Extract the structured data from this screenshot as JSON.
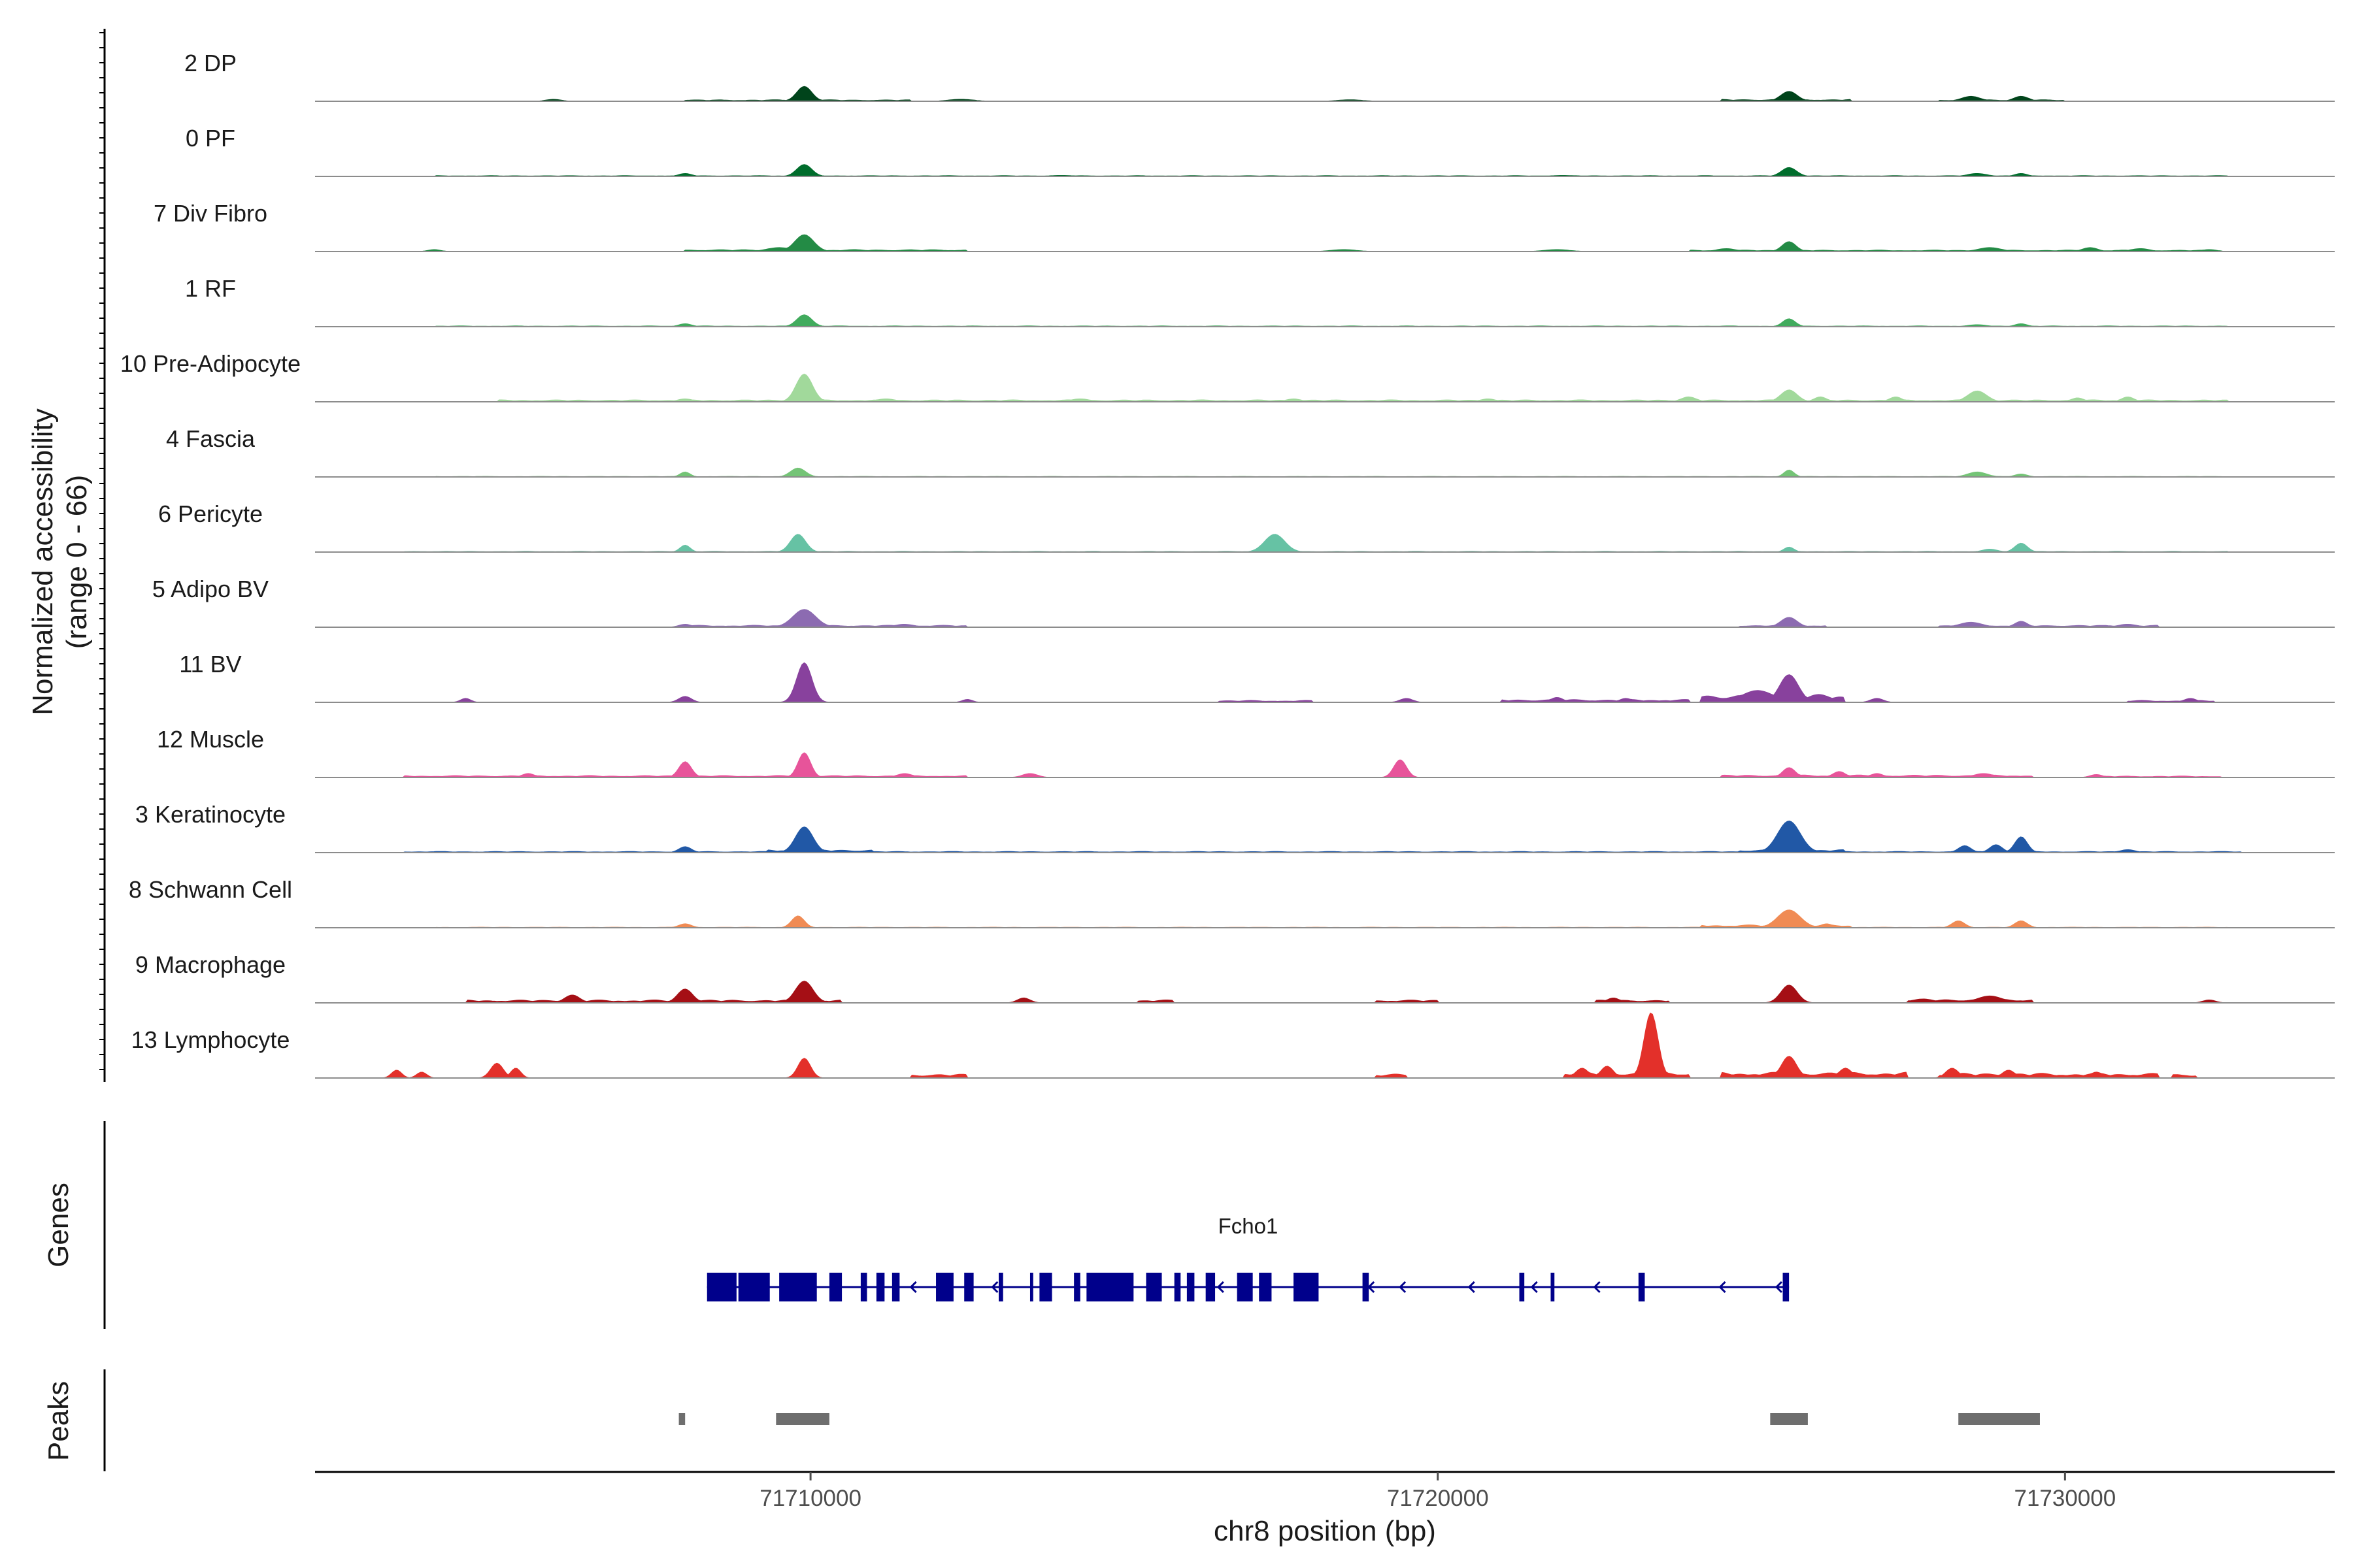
{
  "chart_data": {
    "type": "area",
    "chromosome": "chr8",
    "xlabel": "chr8 position (bp)",
    "ylabel": [
      "Normalized accessibility",
      "(range 0 - 66)"
    ],
    "ylim": [
      0,
      66
    ],
    "xlim": [
      71702100,
      71734300
    ],
    "x_ticks": [
      71710000,
      71720000,
      71730000
    ],
    "x_tick_labels": [
      "71710000",
      "71720000",
      "71730000"
    ],
    "grid": false,
    "panel_labels": {
      "genes": "Genes",
      "peaks": "Peaks"
    },
    "series": [
      {
        "name": "2 DP",
        "color": "#00441b",
        "peaks": [
          [
            71709900,
            15,
            120
          ],
          [
            71725600,
            10,
            130
          ],
          [
            71728500,
            5,
            150
          ],
          [
            71729300,
            5,
            120
          ],
          [
            71705900,
            2,
            120
          ],
          [
            71712400,
            2,
            200
          ],
          [
            71718600,
            1.5,
            200
          ]
        ],
        "spans": [
          [
            71708000,
            71711600,
            1.5
          ],
          [
            71724500,
            71726600,
            2
          ],
          [
            71728000,
            71730000,
            1.5
          ]
        ]
      },
      {
        "name": "0 PF",
        "color": "#006d2c",
        "peaks": [
          [
            71709900,
            12,
            120
          ],
          [
            71725600,
            9,
            120
          ],
          [
            71708000,
            3,
            100
          ],
          [
            71728600,
            3,
            150
          ],
          [
            71729300,
            3,
            100
          ],
          [
            71714000,
            1,
            200
          ],
          [
            71722000,
            1,
            200
          ]
        ],
        "spans": [
          [
            71704000,
            71732600,
            0.8
          ]
        ]
      },
      {
        "name": "7 Div Fibro",
        "color": "#238b45",
        "peaks": [
          [
            71709900,
            17,
            150
          ],
          [
            71725600,
            10,
            110
          ],
          [
            71704000,
            2,
            100
          ],
          [
            71709500,
            4,
            200
          ],
          [
            71724600,
            3,
            150
          ],
          [
            71728800,
            4,
            180
          ],
          [
            71730400,
            4,
            120
          ],
          [
            71731200,
            3,
            150
          ],
          [
            71732300,
            2,
            120
          ],
          [
            71718500,
            2,
            200
          ],
          [
            71721900,
            2,
            200
          ]
        ],
        "spans": [
          [
            71708000,
            71712500,
            2
          ],
          [
            71724000,
            71732500,
            1.5
          ]
        ]
      },
      {
        "name": "1 RF",
        "color": "#41ab5d",
        "peaks": [
          [
            71709900,
            12,
            120
          ],
          [
            71725600,
            8,
            100
          ],
          [
            71708000,
            3,
            100
          ],
          [
            71728600,
            2,
            150
          ],
          [
            71729300,
            3,
            100
          ]
        ],
        "spans": [
          [
            71704000,
            71732600,
            0.8
          ]
        ]
      },
      {
        "name": "10 Pre-Adipocyte",
        "color": "#a1d99b",
        "peaks": [
          [
            71709900,
            28,
            130
          ],
          [
            71708000,
            3,
            120
          ],
          [
            71711200,
            3,
            150
          ],
          [
            71714300,
            3,
            150
          ],
          [
            71725600,
            12,
            130
          ],
          [
            71728600,
            11,
            150
          ],
          [
            71726100,
            5,
            100
          ],
          [
            71727300,
            5,
            100
          ],
          [
            71730200,
            4,
            100
          ],
          [
            71731000,
            5,
            100
          ],
          [
            71724000,
            5,
            120
          ],
          [
            71720800,
            3,
            120
          ],
          [
            71717700,
            3,
            120
          ]
        ],
        "spans": [
          [
            71705000,
            71732600,
            2
          ]
        ]
      },
      {
        "name": "4 Fascia",
        "color": "#74c476",
        "peaks": [
          [
            71709800,
            9,
            120
          ],
          [
            71708000,
            5,
            80
          ],
          [
            71725600,
            7,
            80
          ],
          [
            71728600,
            5,
            150
          ],
          [
            71729300,
            3,
            100
          ]
        ],
        "spans": [
          [
            71704000,
            71732600,
            0.6
          ]
        ]
      },
      {
        "name": "6 Pericyte",
        "color": "#66c2a4",
        "peaks": [
          [
            71709800,
            18,
            120
          ],
          [
            71717400,
            18,
            160
          ],
          [
            71708000,
            7,
            80
          ],
          [
            71729300,
            9,
            100
          ],
          [
            71725600,
            5,
            80
          ],
          [
            71728800,
            3,
            120
          ]
        ],
        "spans": [
          [
            71703500,
            71732600,
            0.8
          ]
        ]
      },
      {
        "name": "5 Adipo BV",
        "color": "#8c6bb1",
        "peaks": [
          [
            71709900,
            18,
            180
          ],
          [
            71725600,
            10,
            130
          ],
          [
            71728500,
            5,
            180
          ],
          [
            71729300,
            6,
            100
          ],
          [
            71708000,
            3,
            100
          ],
          [
            71711500,
            3,
            150
          ],
          [
            71731000,
            3,
            150
          ]
        ],
        "spans": [
          [
            71708000,
            71712500,
            2
          ],
          [
            71724800,
            71726200,
            2
          ],
          [
            71728000,
            71731500,
            2
          ]
        ]
      },
      {
        "name": "11 BV",
        "color": "#88419d",
        "peaks": [
          [
            71709900,
            40,
            120
          ],
          [
            71725600,
            28,
            150
          ],
          [
            71725100,
            12,
            250
          ],
          [
            71708000,
            6,
            100
          ],
          [
            71712500,
            3,
            80
          ],
          [
            71719500,
            4,
            100
          ],
          [
            71721900,
            5,
            100
          ],
          [
            71723000,
            4,
            100
          ],
          [
            71727000,
            4,
            100
          ],
          [
            71732000,
            4,
            100
          ],
          [
            71704500,
            4,
            80
          ]
        ],
        "spans": [
          [
            71724200,
            71726500,
            8
          ],
          [
            71721000,
            71724000,
            3
          ],
          [
            71716500,
            71718000,
            2
          ],
          [
            71731000,
            71732400,
            2
          ]
        ]
      },
      {
        "name": "12 Muscle",
        "color": "#e7549a",
        "peaks": [
          [
            71709900,
            25,
            100
          ],
          [
            71708000,
            16,
            100
          ],
          [
            71719400,
            18,
            100
          ],
          [
            71725600,
            10,
            100
          ],
          [
            71705500,
            4,
            100
          ],
          [
            71711500,
            4,
            120
          ],
          [
            71713500,
            4,
            120
          ],
          [
            71726400,
            6,
            100
          ],
          [
            71727000,
            4,
            100
          ],
          [
            71728700,
            4,
            150
          ],
          [
            71730500,
            3,
            100
          ]
        ],
        "spans": [
          [
            71703500,
            71712500,
            2
          ],
          [
            71724500,
            71729500,
            2.5
          ],
          [
            71730500,
            71732500,
            1.5
          ]
        ]
      },
      {
        "name": "3 Keratinocyte",
        "color": "#2158a6",
        "peaks": [
          [
            71709900,
            26,
            140
          ],
          [
            71725600,
            32,
            180
          ],
          [
            71728400,
            7,
            100
          ],
          [
            71728900,
            8,
            100
          ],
          [
            71729300,
            16,
            100
          ],
          [
            71708000,
            6,
            100
          ],
          [
            71731000,
            3,
            120
          ]
        ],
        "spans": [
          [
            71703500,
            71732800,
            1.2
          ],
          [
            71709300,
            71711000,
            3
          ],
          [
            71724800,
            71726500,
            3
          ]
        ]
      },
      {
        "name": "8 Schwann Cell",
        "color": "#f08b54",
        "peaks": [
          [
            71709800,
            12,
            100
          ],
          [
            71725600,
            18,
            180
          ],
          [
            71708000,
            4,
            100
          ],
          [
            71728300,
            7,
            100
          ],
          [
            71729300,
            7,
            100
          ],
          [
            71726200,
            4,
            100
          ]
        ],
        "spans": [
          [
            71724200,
            71726600,
            3
          ],
          [
            71704000,
            71732600,
            0.6
          ]
        ]
      },
      {
        "name": "9 Macrophage",
        "color": "#a50f15",
        "peaks": [
          [
            71709900,
            22,
            140
          ],
          [
            71708000,
            14,
            120
          ],
          [
            71725600,
            18,
            130
          ],
          [
            71706200,
            8,
            120
          ],
          [
            71713400,
            5,
            100
          ],
          [
            71722800,
            5,
            100
          ],
          [
            71728800,
            7,
            200
          ],
          [
            71732300,
            3,
            100
          ]
        ],
        "spans": [
          [
            71704500,
            71710500,
            3
          ],
          [
            71722500,
            71723700,
            3
          ],
          [
            71727500,
            71729500,
            4
          ],
          [
            71715200,
            71715800,
            3
          ],
          [
            71719000,
            71720000,
            3
          ]
        ]
      },
      {
        "name": "13 Lymphocyte",
        "color": "#e3302a",
        "peaks": [
          [
            71723400,
            66,
            110
          ],
          [
            71709900,
            20,
            100
          ],
          [
            71725600,
            22,
            120
          ],
          [
            71705000,
            15,
            100
          ],
          [
            71705300,
            10,
            80
          ],
          [
            71722700,
            12,
            100
          ],
          [
            71722300,
            10,
            100
          ],
          [
            71703400,
            8,
            80
          ],
          [
            71703800,
            6,
            80
          ],
          [
            71726500,
            10,
            100
          ],
          [
            71728200,
            10,
            100
          ],
          [
            71729100,
            8,
            100
          ],
          [
            71730500,
            6,
            100
          ]
        ],
        "spans": [
          [
            71722000,
            71724000,
            6
          ],
          [
            71724500,
            71727500,
            6
          ],
          [
            71728000,
            71731500,
            5
          ],
          [
            71711600,
            71712500,
            4
          ],
          [
            71719000,
            71719500,
            4
          ],
          [
            71731700,
            71732100,
            4
          ]
        ]
      }
    ],
    "gene": {
      "name": "Fcho1",
      "strand": "-",
      "color": "#00008b",
      "start": 71708350,
      "end": 71725600,
      "exons": [
        [
          71708350,
          71708820,
          "thick"
        ],
        [
          71708850,
          71709350,
          "thick"
        ],
        [
          71709500,
          71710100,
          "thick"
        ],
        [
          71710300,
          71710500,
          "thick"
        ],
        [
          71710800,
          71710900,
          "thin"
        ],
        [
          71711050,
          71711180,
          "thin"
        ],
        [
          71711300,
          71711420,
          "thin"
        ],
        [
          71712000,
          71712280,
          "thick"
        ],
        [
          71712450,
          71712600,
          "thick"
        ],
        [
          71713000,
          71713070,
          "thin"
        ],
        [
          71713500,
          71713550,
          "line"
        ],
        [
          71713650,
          71713850,
          "thick"
        ],
        [
          71714200,
          71714300,
          "thin"
        ],
        [
          71714550,
          71714650,
          "thin"
        ],
        [
          71714400,
          71715150,
          "thick"
        ],
        [
          71715350,
          71715600,
          "thick"
        ],
        [
          71715800,
          71715900,
          "thin"
        ],
        [
          71716000,
          71716120,
          "thin"
        ],
        [
          71716300,
          71716450,
          "thin"
        ],
        [
          71716800,
          71717050,
          "thick"
        ],
        [
          71717150,
          71717350,
          "thick"
        ],
        [
          71717700,
          71718100,
          "thick"
        ],
        [
          71718800,
          71718900,
          "thin"
        ],
        [
          71721300,
          71721380,
          "thin"
        ],
        [
          71721800,
          71721860,
          "line"
        ],
        [
          71723200,
          71723300,
          "thin"
        ],
        [
          71725500,
          71725600,
          "line"
        ]
      ],
      "arrows": [
        71709100,
        71711600,
        71712900,
        71716500,
        71718900,
        71719400,
        71720500,
        71721500,
        71722500,
        71724500,
        71725400
      ]
    },
    "peaks_track": {
      "color": "#6e6e6e",
      "regions": [
        [
          71707900,
          71708000
        ],
        [
          71709450,
          71710300
        ],
        [
          71725300,
          71725900
        ],
        [
          71728300,
          71729600
        ]
      ]
    }
  }
}
